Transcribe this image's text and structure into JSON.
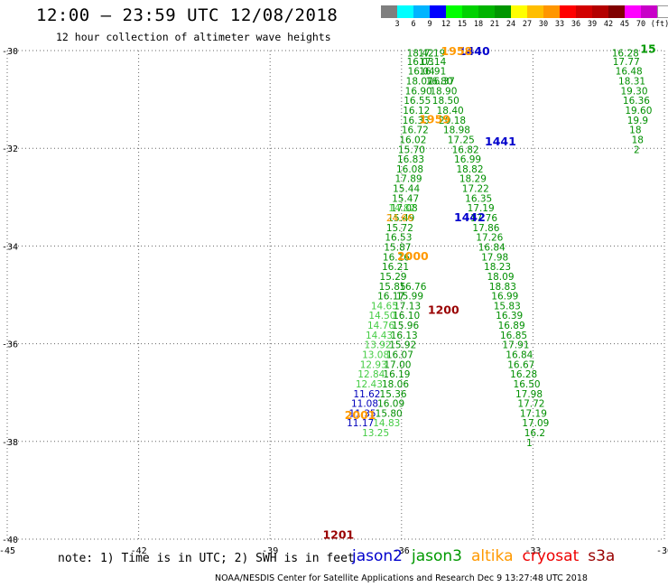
{
  "header": {
    "title": "12:00 – 23:59 UTC 12/08/2018",
    "subtitle": "12 hour collection of altimeter wave heights"
  },
  "colorbar": {
    "colors": [
      "#7f7f7f",
      "#00ffff",
      "#00b4ff",
      "#0000ff",
      "#00ff00",
      "#00d200",
      "#00b400",
      "#009600",
      "#ffff00",
      "#ffbe00",
      "#ff9600",
      "#ff0000",
      "#d20000",
      "#b40000",
      "#800000",
      "#ff00ff",
      "#c800c8",
      "#ffffff"
    ],
    "labels": [
      "3",
      "6",
      "9",
      "12",
      "15",
      "18",
      "21",
      "24",
      "27",
      "30",
      "33",
      "36",
      "39",
      "42",
      "45",
      "70",
      "(ft)"
    ]
  },
  "footer": {
    "note": "note: 1) Time is in UTC; 2) SWH is in feet",
    "credit": "NOAA/NESDIS Center for Satellite Applications and Research    Dec  9 13:27:48 UTC 2018"
  },
  "satellites": [
    {
      "name": "jason2",
      "color": "#0000cc"
    },
    {
      "name": "jason3",
      "color": "#009900"
    },
    {
      "name": "altika",
      "color": "#ff9900"
    },
    {
      "name": "cryosat",
      "color": "#ee0000"
    },
    {
      "name": "s3a",
      "color": "#990000"
    }
  ],
  "chart_data": {
    "type": "scatter",
    "xlim": [
      -45,
      -30
    ],
    "ylim": [
      -40,
      -30
    ],
    "x_ticks": [
      "-45",
      "-42",
      "-39",
      "-36",
      "-33",
      "-30"
    ],
    "y_ticks": [
      "-30",
      "-32",
      "-34",
      "-36",
      "-38",
      "-40"
    ],
    "grid": true,
    "series": [
      {
        "name": "jason3",
        "color": "#008f00",
        "points": [
          [
            -35.88,
            -30.05,
            "18.42"
          ],
          [
            -35.62,
            -30.05,
            "17.19"
          ],
          [
            -35.88,
            -30.22,
            "16.03"
          ],
          [
            -35.6,
            -30.22,
            "17.14"
          ],
          [
            -35.86,
            -30.42,
            "16.04"
          ],
          [
            -35.6,
            -30.42,
            "16.91"
          ],
          [
            -35.9,
            -30.62,
            "18.07"
          ],
          [
            -35.45,
            -30.62,
            "16.80"
          ],
          [
            -35.92,
            -30.82,
            "16.90"
          ],
          [
            -35.4,
            -30.62,
            "16.37"
          ],
          [
            -35.95,
            -31.02,
            "16.55"
          ],
          [
            -35.35,
            -30.82,
            "18.90"
          ],
          [
            -35.97,
            -31.22,
            "16.12"
          ],
          [
            -35.3,
            -31.02,
            "18.50"
          ],
          [
            -35.98,
            -31.42,
            "16.33"
          ],
          [
            -35.2,
            -31.22,
            "18.40"
          ],
          [
            -36.0,
            -31.62,
            "16.72"
          ],
          [
            -35.15,
            -31.42,
            "20.18"
          ],
          [
            -36.05,
            -31.82,
            "16.02"
          ],
          [
            -35.05,
            -31.62,
            "18.98"
          ],
          [
            -36.08,
            -32.02,
            "15.70"
          ],
          [
            -34.95,
            -31.82,
            "17.25"
          ],
          [
            -36.1,
            -32.22,
            "16.83"
          ],
          [
            -34.85,
            -32.02,
            "16.82"
          ],
          [
            -36.12,
            -32.42,
            "16.08"
          ],
          [
            -34.8,
            -32.22,
            "16.99"
          ],
          [
            -36.15,
            -32.62,
            "17.89"
          ],
          [
            -34.75,
            -32.42,
            "18.82"
          ],
          [
            -36.2,
            -32.82,
            "15.44"
          ],
          [
            -34.68,
            -32.62,
            "18.29"
          ],
          [
            -36.22,
            -33.02,
            "15.47"
          ],
          [
            -34.62,
            -32.82,
            "17.22"
          ],
          [
            -36.25,
            -33.22,
            "17.08"
          ],
          [
            -34.55,
            -33.02,
            "16.35"
          ],
          [
            -34.5,
            -33.22,
            "17.19"
          ],
          [
            -34.43,
            -33.42,
            "17.76"
          ],
          [
            -34.38,
            -33.62,
            "17.86"
          ],
          [
            -34.3,
            -33.82,
            "17.26"
          ],
          [
            -34.25,
            -34.02,
            "16.84"
          ],
          [
            -34.18,
            -34.22,
            "17.98"
          ],
          [
            -34.12,
            -34.42,
            "18.23"
          ],
          [
            -34.05,
            -34.62,
            "18.09"
          ],
          [
            -34.0,
            -34.82,
            "18.83"
          ],
          [
            -33.95,
            -35.02,
            "16.99"
          ],
          [
            -33.9,
            -35.22,
            "15.83"
          ],
          [
            -33.85,
            -35.42,
            "16.39"
          ],
          [
            -33.8,
            -35.62,
            "16.89"
          ],
          [
            -33.75,
            -35.82,
            "16.85"
          ],
          [
            -33.7,
            -36.02,
            "17.91"
          ],
          [
            -33.62,
            -36.22,
            "16.84"
          ],
          [
            -33.58,
            -36.42,
            "16.67"
          ],
          [
            -33.52,
            -36.62,
            "16.28"
          ],
          [
            -33.45,
            -36.82,
            "16.50"
          ],
          [
            -33.4,
            -37.02,
            "17.98"
          ],
          [
            -33.35,
            -37.22,
            "17.72"
          ],
          [
            -33.3,
            -37.42,
            "17.19"
          ],
          [
            -33.25,
            -37.62,
            "17.09"
          ],
          [
            -33.2,
            -37.82,
            "16.2"
          ],
          [
            -33.15,
            -38.02,
            "1"
          ],
          [
            -31.2,
            -30.05,
            "16.28"
          ],
          [
            -31.18,
            -30.22,
            "17.77"
          ],
          [
            -31.12,
            -30.42,
            "16.48"
          ],
          [
            -31.05,
            -30.62,
            "18.31"
          ],
          [
            -31.0,
            -30.82,
            "19.30"
          ],
          [
            -30.95,
            -31.02,
            "16.36"
          ],
          [
            -30.9,
            -31.22,
            "19.60"
          ],
          [
            -30.85,
            -31.42,
            "19.9"
          ],
          [
            -30.8,
            -31.62,
            "18"
          ],
          [
            -30.75,
            -31.82,
            "18"
          ],
          [
            -30.7,
            -32.02,
            "2"
          ],
          [
            -36.32,
            -33.42,
            "15.49"
          ],
          [
            -36.35,
            -33.62,
            "15.72"
          ],
          [
            -36.38,
            -33.82,
            "16.53"
          ],
          [
            -36.4,
            -34.02,
            "15.87"
          ],
          [
            -36.43,
            -34.22,
            "16.16"
          ],
          [
            -36.45,
            -34.42,
            "16.21"
          ],
          [
            -36.5,
            -34.62,
            "15.29"
          ],
          [
            -36.52,
            -34.82,
            "15.85"
          ],
          [
            -36.05,
            -34.82,
            "16.76"
          ],
          [
            -36.55,
            -35.02,
            "16.17"
          ],
          [
            -36.12,
            -35.02,
            "15.99"
          ],
          [
            -36.18,
            -35.22,
            "17.13"
          ],
          [
            -36.2,
            -35.42,
            "16.10"
          ],
          [
            -36.22,
            -35.62,
            "15.96"
          ],
          [
            -36.25,
            -35.82,
            "16.13"
          ],
          [
            -36.28,
            -36.02,
            "15.92"
          ],
          [
            -36.35,
            -36.22,
            "16.07"
          ],
          [
            -36.4,
            -36.42,
            "17.00"
          ],
          [
            -36.42,
            -36.62,
            "16.19"
          ],
          [
            -36.45,
            -36.82,
            "18.06"
          ],
          [
            -36.5,
            -37.02,
            "15.36"
          ],
          [
            -36.55,
            -37.22,
            "16.09"
          ],
          [
            -36.6,
            -37.42,
            "15.80"
          ]
        ]
      },
      {
        "name": "jason3-light",
        "color": "#44cc44",
        "points": [
          [
            -36.3,
            -33.22,
            "14.82"
          ],
          [
            -36.7,
            -35.22,
            "14.65"
          ],
          [
            -36.75,
            -35.42,
            "14.50"
          ],
          [
            -36.78,
            -35.62,
            "14.76"
          ],
          [
            -36.82,
            -35.82,
            "14.43"
          ],
          [
            -36.85,
            -36.02,
            "13.92"
          ],
          [
            -36.9,
            -36.22,
            "13.08"
          ],
          [
            -36.95,
            -36.42,
            "12.93"
          ],
          [
            -37.0,
            -36.62,
            "12.84"
          ],
          [
            -37.05,
            -36.82,
            "12.43"
          ],
          [
            -36.65,
            -37.62,
            "14.83"
          ],
          [
            -36.9,
            -37.82,
            "13.25"
          ]
        ]
      },
      {
        "name": "jason2",
        "color": "#0000bb",
        "points": [
          [
            -37.1,
            -37.02,
            "11.62"
          ],
          [
            -37.15,
            -37.22,
            "11.08"
          ],
          [
            -37.2,
            -37.42,
            "11.35"
          ],
          [
            -37.25,
            -37.62,
            "11.17"
          ]
        ]
      },
      {
        "name": "altika",
        "color": "#ff9900",
        "points": [
          [
            -36.35,
            -33.42,
            "24.66"
          ]
        ]
      }
    ],
    "time_labels": [
      {
        "x": -34.7,
        "y": -30.0,
        "text": "1440",
        "color": "#0000cc"
      },
      {
        "x": -35.1,
        "y": -30.0,
        "text": "1958",
        "color": "#ff9900"
      },
      {
        "x": -35.6,
        "y": -31.4,
        "text": "1959",
        "color": "#ff9900"
      },
      {
        "x": -34.1,
        "y": -31.85,
        "text": "1441",
        "color": "#0000cc"
      },
      {
        "x": -36.1,
        "y": -34.2,
        "text": "2000",
        "color": "#ff9900"
      },
      {
        "x": -34.8,
        "y": -33.4,
        "text": "1442",
        "color": "#0000cc"
      },
      {
        "x": -35.4,
        "y": -35.3,
        "text": "1200",
        "color": "#990000"
      },
      {
        "x": -37.3,
        "y": -37.45,
        "text": "2001",
        "color": "#ff9900"
      },
      {
        "x": -37.8,
        "y": -39.9,
        "text": "1201",
        "color": "#990000"
      },
      {
        "x": -30.55,
        "y": -29.95,
        "text": "15",
        "color": "#009900"
      }
    ]
  }
}
